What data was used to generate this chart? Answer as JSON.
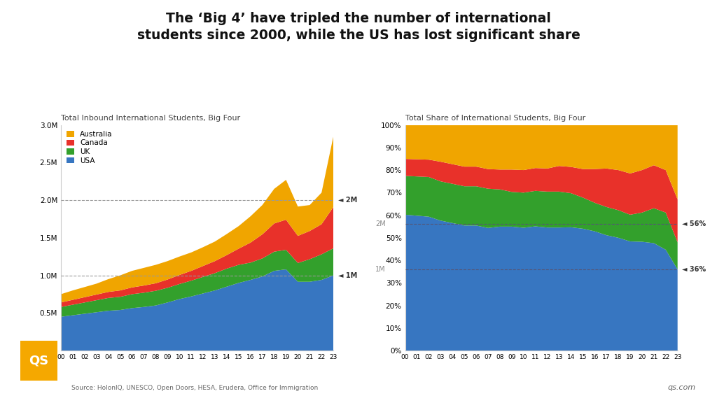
{
  "title": "The ‘Big 4’ have tripled the number of international\nstudents since 2000, while the US has lost significant share",
  "left_title": "Total Inbound International Students, Big Four",
  "right_title": "Total Share of International Students, Big Four",
  "year_labels": [
    "00",
    "01",
    "02",
    "03",
    "04",
    "05",
    "06",
    "07",
    "08",
    "09",
    "10",
    "11",
    "12",
    "13",
    "14",
    "15",
    "16",
    "17",
    "18",
    "19",
    "20",
    "21",
    "22",
    "23"
  ],
  "usa_abs": [
    450000,
    470000,
    490000,
    510000,
    530000,
    540000,
    565000,
    580000,
    600000,
    640000,
    685000,
    720000,
    760000,
    800000,
    850000,
    900000,
    940000,
    985000,
    1060000,
    1080000,
    915000,
    915000,
    940000,
    1000000
  ],
  "uk_abs": [
    130000,
    140000,
    150000,
    160000,
    170000,
    175000,
    185000,
    190000,
    195000,
    195000,
    200000,
    210000,
    220000,
    230000,
    240000,
    240000,
    230000,
    240000,
    255000,
    260000,
    250000,
    300000,
    340000,
    360000
  ],
  "canada_abs": [
    60000,
    65000,
    70000,
    75000,
    80000,
    85000,
    90000,
    95000,
    100000,
    110000,
    120000,
    130000,
    145000,
    160000,
    180000,
    215000,
    265000,
    320000,
    375000,
    400000,
    360000,
    375000,
    400000,
    550000
  ],
  "australia_abs": [
    110000,
    125000,
    135000,
    145000,
    170000,
    200000,
    220000,
    235000,
    245000,
    245000,
    245000,
    245000,
    250000,
    260000,
    280000,
    300000,
    350000,
    390000,
    460000,
    530000,
    390000,
    345000,
    420000,
    940000
  ],
  "usa_pct": [
    56,
    55,
    54,
    53,
    52,
    51,
    51,
    50,
    50,
    50,
    49,
    49,
    48,
    48,
    47,
    47,
    46,
    45,
    45,
    45,
    41,
    40,
    38,
    36
  ],
  "uk_pct": [
    16,
    16,
    16,
    16,
    16,
    16,
    16,
    16,
    15,
    14,
    14,
    14,
    14,
    14,
    13,
    12,
    11,
    11,
    11,
    11,
    11,
    13,
    14,
    12
  ],
  "canada_pct": [
    7,
    7,
    7,
    8,
    8,
    8,
    8,
    8,
    8,
    9,
    9,
    9,
    9,
    10,
    10,
    11,
    13,
    15,
    16,
    17,
    16,
    16,
    16,
    19
  ],
  "australia_pct": [
    14,
    14,
    14,
    15,
    16,
    17,
    17,
    18,
    18,
    18,
    18,
    17,
    17,
    16,
    16,
    17,
    17,
    17,
    18,
    20,
    17,
    15,
    17,
    33
  ],
  "color_usa": "#3776c1",
  "color_uk": "#33a02c",
  "color_canada": "#e8312a",
  "color_australia": "#f0a500",
  "source_text": "Source: HolonIQ, UNESCO, Open Doors, HESA, Erudera, Office for Immigration",
  "qs_text": "qs.com",
  "bg_color": "#ffffff"
}
